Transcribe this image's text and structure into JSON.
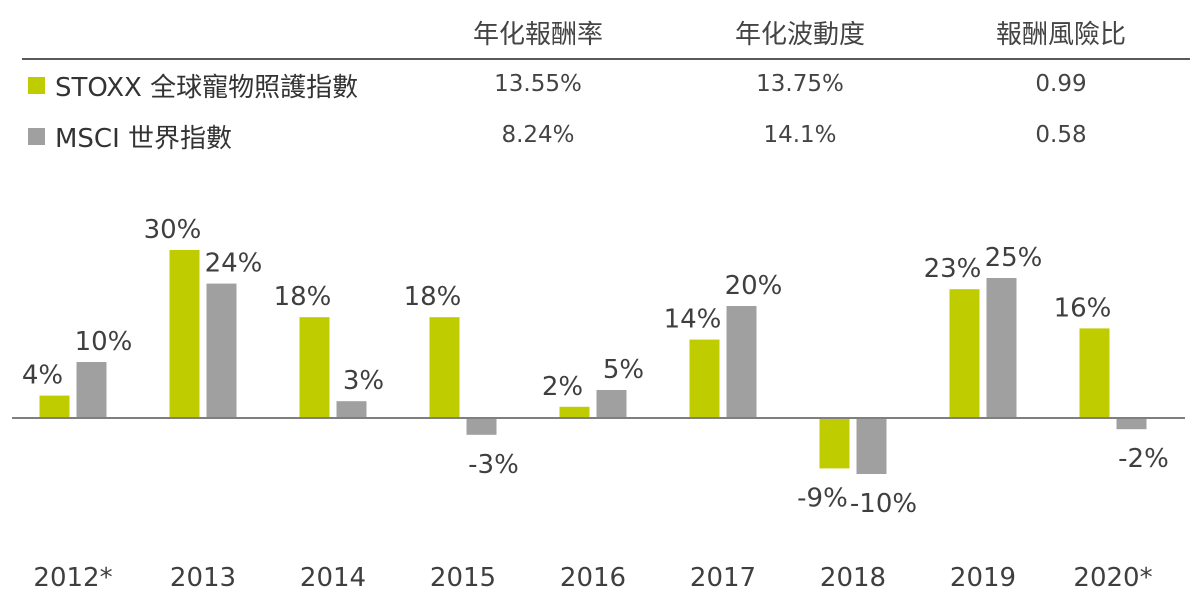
{
  "stats_table": {
    "headers": [
      "年化報酬率",
      "年化波動度",
      "報酬風險比"
    ],
    "rows": [
      {
        "name": "STOXX 全球寵物照護指數",
        "color": "#bfcc00",
        "values": [
          "13.55%",
          "13.75%",
          "0.99"
        ]
      },
      {
        "name": "MSCI 世界指數",
        "color": "#a0a0a0",
        "values": [
          "8.24%",
          "14.1%",
          "0.58"
        ]
      }
    ]
  },
  "chart_data": {
    "type": "bar",
    "categories": [
      "2012*",
      "2013",
      "2014",
      "2015",
      "2016",
      "2017",
      "2018",
      "2019",
      "2020*"
    ],
    "series": [
      {
        "name": "STOXX 全球寵物照護指數",
        "color": "#bfcc00",
        "values": [
          4,
          30,
          18,
          18,
          2,
          14,
          -9,
          23,
          16
        ],
        "labels": [
          "4%",
          "30%",
          "18%",
          "18%",
          "2%",
          "14%",
          "-9%",
          "23%",
          "16%"
        ]
      },
      {
        "name": "MSCI 世界指數",
        "color": "#a0a0a0",
        "values": [
          10,
          24,
          3,
          -3,
          5,
          20,
          -10,
          25,
          -2
        ],
        "labels": [
          "10%",
          "24%",
          "3%",
          "-3%",
          "5%",
          "20%",
          "-10%",
          "25%",
          "-2%"
        ]
      }
    ],
    "ylim": [
      -10,
      30
    ],
    "axis_color": "#7f7f7f"
  }
}
